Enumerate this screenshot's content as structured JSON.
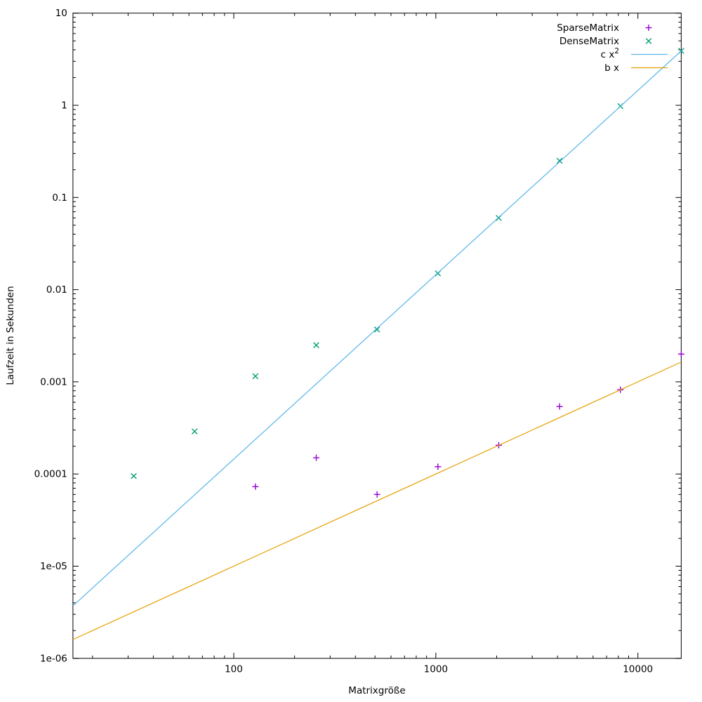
{
  "chart_data": {
    "type": "scatter",
    "title": "",
    "xlabel": "Matrixgröße",
    "ylabel": "Laufzeit in Sekunden",
    "x_scale": "log",
    "y_scale": "log",
    "xlim": [
      16,
      16384
    ],
    "ylim": [
      1e-06,
      10
    ],
    "grid": false,
    "legend_position": "top-right-inside",
    "background_color": "#ffffff",
    "foreground_color": "#000000",
    "x_ticks": [
      {
        "value": 100,
        "label": "100"
      },
      {
        "value": 1000,
        "label": "1000"
      },
      {
        "value": 10000,
        "label": "10000"
      }
    ],
    "y_ticks": [
      {
        "value": 10,
        "label": "10"
      },
      {
        "value": 1,
        "label": "1"
      },
      {
        "value": 0.1,
        "label": "0.1"
      },
      {
        "value": 0.01,
        "label": "0.01"
      },
      {
        "value": 0.001,
        "label": "0.001"
      },
      {
        "value": 0.0001,
        "label": "0.0001"
      },
      {
        "value": 1e-05,
        "label": "1e-05"
      },
      {
        "value": 1e-06,
        "label": "1e-06"
      }
    ],
    "series": [
      {
        "name": "SparseMatrix",
        "kind": "points",
        "marker": "plus",
        "color": "#9400d3",
        "points": [
          [
            128,
            7.3e-05
          ],
          [
            256,
            0.00015
          ],
          [
            512,
            6e-05
          ],
          [
            1024,
            0.00012
          ],
          [
            2048,
            0.000205
          ],
          [
            4096,
            0.00054
          ],
          [
            8192,
            0.00082
          ],
          [
            16384,
            0.002
          ]
        ]
      },
      {
        "name": "DenseMatrix",
        "kind": "points",
        "marker": "cross",
        "color": "#009e73",
        "points": [
          [
            32,
            9.5e-05
          ],
          [
            64,
            0.00029
          ],
          [
            128,
            0.00115
          ],
          [
            256,
            0.0025
          ],
          [
            512,
            0.0037
          ],
          [
            1024,
            0.015
          ],
          [
            2048,
            0.06
          ],
          [
            4096,
            0.25
          ],
          [
            8192,
            0.98
          ],
          [
            16384,
            3.9
          ]
        ]
      },
      {
        "name": "c x",
        "sup": "2",
        "kind": "function",
        "exponent": 2,
        "coefficient": 1.45e-08,
        "color": "#56b4e9"
      },
      {
        "name": "b x",
        "sup": "",
        "kind": "function",
        "exponent": 1,
        "coefficient": 1e-07,
        "color": "#e69f00"
      }
    ]
  }
}
